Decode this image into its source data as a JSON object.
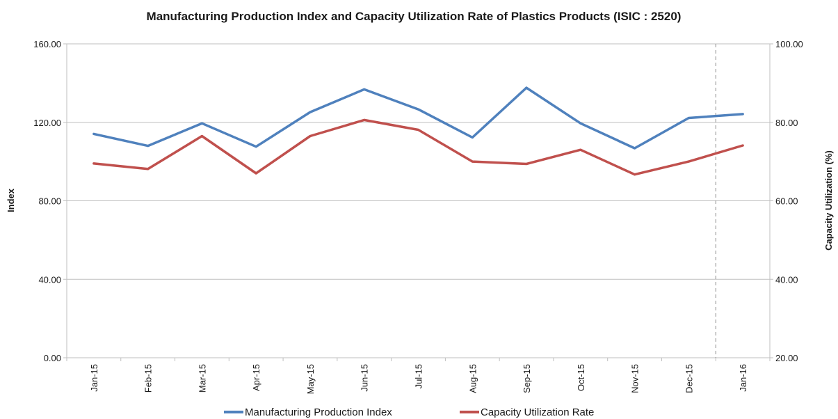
{
  "chart_data": {
    "type": "line",
    "title": "Manufacturing Production Index and Capacity Utilization Rate of Plastics Products (ISIC : 2520)",
    "categories": [
      "Jan-15",
      "Feb-15",
      "Mar-15",
      "Apr-15",
      "May-15",
      "Jun-15",
      "Jul-15",
      "Aug-15",
      "Sep-15",
      "Oct-15",
      "Nov-15",
      "Dec-15",
      "Jan-16"
    ],
    "y_left": {
      "label": "Index",
      "range": [
        0,
        160
      ],
      "ticks": [
        "0.00",
        "40.00",
        "80.00",
        "120.00",
        "160.00"
      ]
    },
    "y_right": {
      "label": "Capacity Utilization (%)",
      "range": [
        20,
        100
      ],
      "ticks": [
        "20.00",
        "40.00",
        "60.00",
        "80.00",
        "100.00"
      ]
    },
    "series": [
      {
        "name": "Manufacturing Production Index",
        "axis": "left",
        "color": "#4F81BD",
        "values": [
          114.1,
          108.0,
          119.5,
          107.6,
          125.2,
          136.8,
          126.6,
          112.3,
          137.6,
          119.5,
          106.8,
          122.2,
          124.2
        ]
      },
      {
        "name": "Capacity Utilization Rate",
        "axis": "right",
        "color": "#C0504D",
        "values": [
          69.5,
          68.1,
          76.5,
          67.0,
          76.5,
          80.6,
          78.1,
          70.0,
          69.4,
          73.0,
          66.7,
          70.0,
          74.1
        ]
      }
    ],
    "gridlines": true,
    "divider_after_category": "Dec-15",
    "legend": "bottom"
  }
}
